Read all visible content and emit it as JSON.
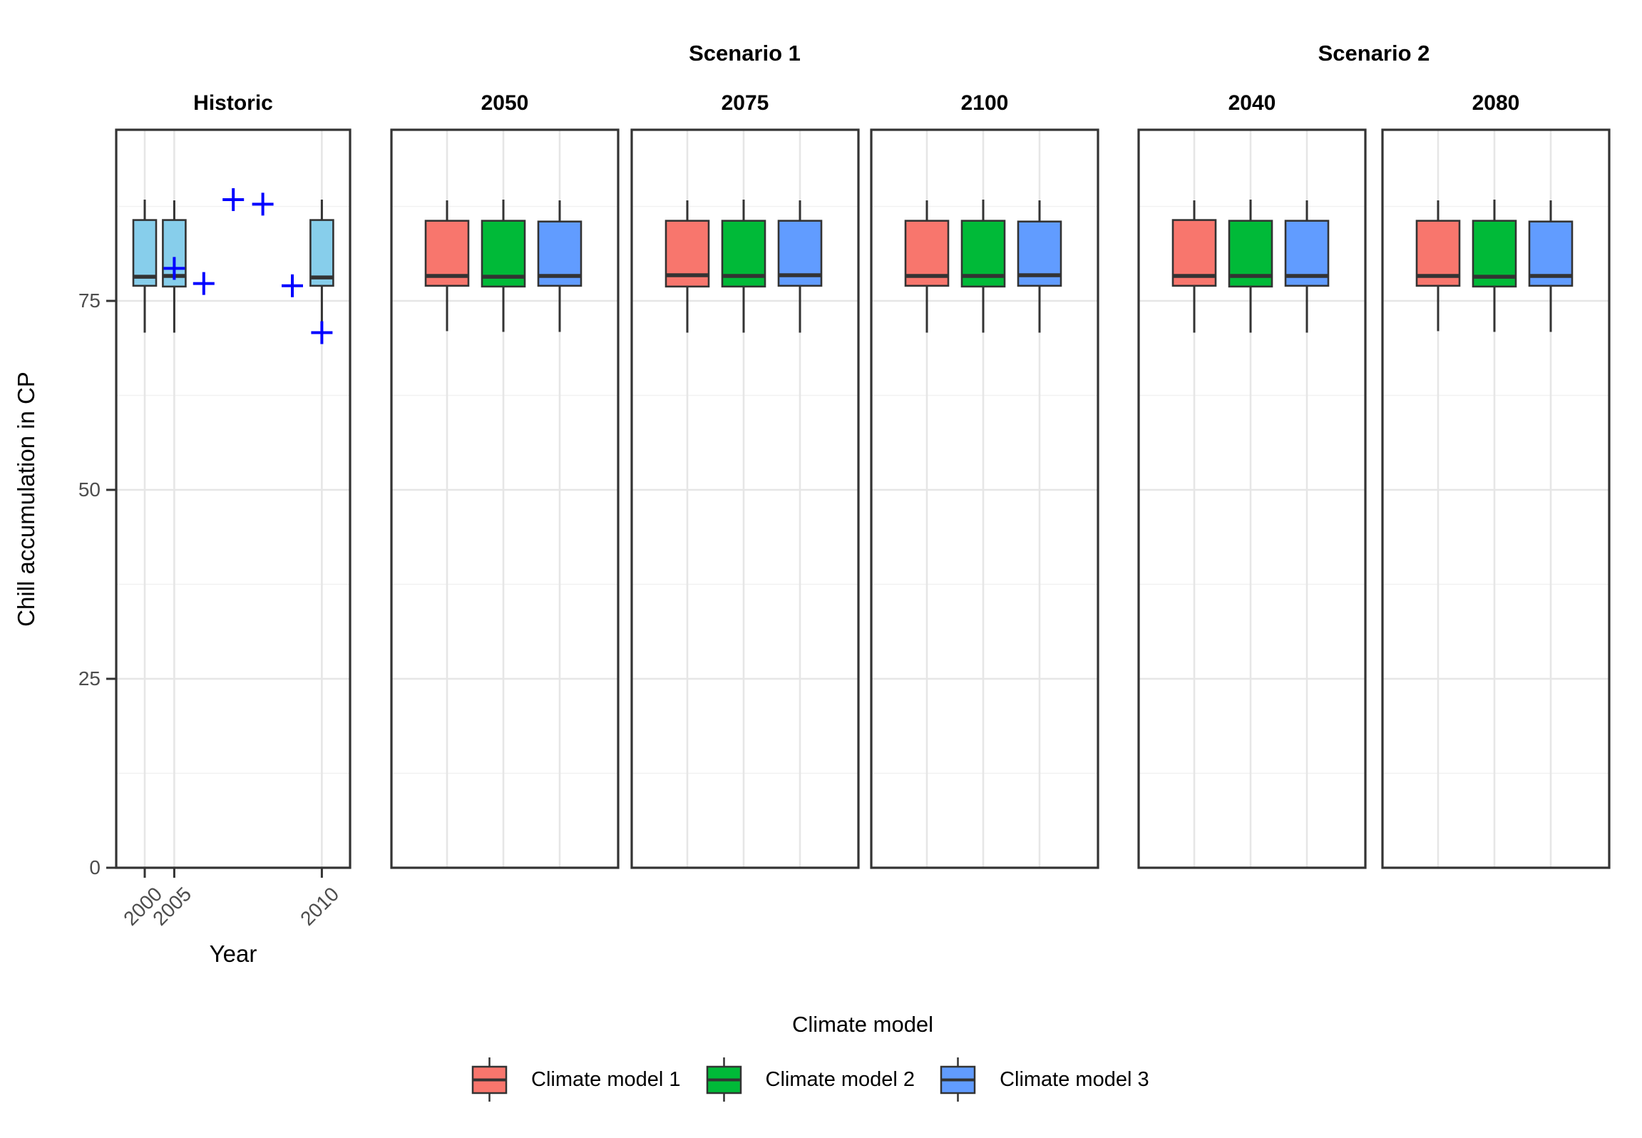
{
  "chart_data": {
    "type": "boxplot",
    "description": "Faceted boxplot figure of chill accumulation scenarios; historic simulated boxplots with observed values as blue crosses, and future scenario boxplots per climate model.",
    "facet_row_headers": [
      "Scenario 1",
      "Scenario 2"
    ],
    "ylabel": "Chill accumulation in CP",
    "xlabel": "Year",
    "ylim": [
      0,
      97.6
    ],
    "y_ticks": [
      {
        "value": 0,
        "label": "0"
      },
      {
        "value": 25,
        "label": "25"
      },
      {
        "value": 50,
        "label": "50"
      },
      {
        "value": 75,
        "label": "75"
      }
    ],
    "grid": {
      "h_major": [
        25,
        50,
        75
      ],
      "h_minor": [
        12.5,
        37.5,
        62.5,
        87.5
      ],
      "visible": true
    },
    "point_color": "#0000FF",
    "point_shape": "plus",
    "box_border_color": "#333333",
    "historic_fill": "#87CEEB",
    "panels": [
      {
        "title": "Historic",
        "group": "",
        "x_type": "year",
        "n_slots": 7,
        "x_ticks": [
          {
            "label": "2000",
            "slot": 0
          },
          {
            "label": "2005",
            "slot": 1
          },
          {
            "label": "2010",
            "slot": 6
          }
        ],
        "boxes": [
          {
            "slot": 0,
            "year": "2000",
            "color": "#87CEEB",
            "low": 70.8,
            "q1": 77.0,
            "median": 78.2,
            "q3": 85.7,
            "high": 88.4
          },
          {
            "slot": 1,
            "year": "2005",
            "color": "#87CEEB",
            "low": 70.8,
            "q1": 76.9,
            "median": 78.3,
            "q3": 85.7,
            "high": 88.3
          },
          {
            "slot": 6,
            "year": "2010",
            "color": "#87CEEB",
            "low": 69.3,
            "q1": 77.0,
            "median": 78.1,
            "q3": 85.7,
            "high": 88.4
          }
        ],
        "points": [
          {
            "slot": 1,
            "year": "2005",
            "value": 79.3
          },
          {
            "slot": 2,
            "year": "2006",
            "value": 77.3
          },
          {
            "slot": 3,
            "year": "2007",
            "value": 88.4
          },
          {
            "slot": 4,
            "year": "2008",
            "value": 87.8
          },
          {
            "slot": 5,
            "year": "2009",
            "value": 77.0
          },
          {
            "slot": 6,
            "year": "2010",
            "value": 70.8
          }
        ]
      },
      {
        "title": "2050",
        "group": "Scenario 1",
        "x_type": "model",
        "n_slots": 3,
        "x_ticks": [],
        "boxes": [
          {
            "slot": 0,
            "model": "Climate model 1",
            "color": "#F8766D",
            "low": 71.0,
            "q1": 77.0,
            "median": 78.3,
            "q3": 85.6,
            "high": 88.3
          },
          {
            "slot": 1,
            "model": "Climate model 2",
            "color": "#00BA38",
            "low": 70.9,
            "q1": 76.9,
            "median": 78.2,
            "q3": 85.6,
            "high": 88.4
          },
          {
            "slot": 2,
            "model": "Climate model 3",
            "color": "#619CFF",
            "low": 70.9,
            "q1": 77.0,
            "median": 78.3,
            "q3": 85.5,
            "high": 88.3
          }
        ],
        "points": []
      },
      {
        "title": "2075",
        "group": "Scenario 1",
        "x_type": "model",
        "n_slots": 3,
        "x_ticks": [],
        "boxes": [
          {
            "slot": 0,
            "model": "Climate model 1",
            "color": "#F8766D",
            "low": 70.8,
            "q1": 76.9,
            "median": 78.4,
            "q3": 85.6,
            "high": 88.3
          },
          {
            "slot": 1,
            "model": "Climate model 2",
            "color": "#00BA38",
            "low": 70.8,
            "q1": 76.9,
            "median": 78.3,
            "q3": 85.6,
            "high": 88.4
          },
          {
            "slot": 2,
            "model": "Climate model 3",
            "color": "#619CFF",
            "low": 70.8,
            "q1": 77.0,
            "median": 78.4,
            "q3": 85.6,
            "high": 88.3
          }
        ],
        "points": []
      },
      {
        "title": "2100",
        "group": "Scenario 1",
        "x_type": "model",
        "n_slots": 3,
        "x_ticks": [],
        "boxes": [
          {
            "slot": 0,
            "model": "Climate model 1",
            "color": "#F8766D",
            "low": 70.8,
            "q1": 77.0,
            "median": 78.3,
            "q3": 85.6,
            "high": 88.3
          },
          {
            "slot": 1,
            "model": "Climate model 2",
            "color": "#00BA38",
            "low": 70.8,
            "q1": 76.9,
            "median": 78.3,
            "q3": 85.6,
            "high": 88.4
          },
          {
            "slot": 2,
            "model": "Climate model 3",
            "color": "#619CFF",
            "low": 70.8,
            "q1": 77.0,
            "median": 78.4,
            "q3": 85.5,
            "high": 88.3
          }
        ],
        "points": []
      },
      {
        "title": "2040",
        "group": "Scenario 2",
        "x_type": "model",
        "n_slots": 3,
        "x_ticks": [],
        "boxes": [
          {
            "slot": 0,
            "model": "Climate model 1",
            "color": "#F8766D",
            "low": 70.8,
            "q1": 77.0,
            "median": 78.3,
            "q3": 85.7,
            "high": 88.3
          },
          {
            "slot": 1,
            "model": "Climate model 2",
            "color": "#00BA38",
            "low": 70.8,
            "q1": 76.9,
            "median": 78.3,
            "q3": 85.6,
            "high": 88.4
          },
          {
            "slot": 2,
            "model": "Climate model 3",
            "color": "#619CFF",
            "low": 70.8,
            "q1": 77.0,
            "median": 78.3,
            "q3": 85.6,
            "high": 88.3
          }
        ],
        "points": []
      },
      {
        "title": "2080",
        "group": "Scenario 2",
        "x_type": "model",
        "n_slots": 3,
        "x_ticks": [],
        "boxes": [
          {
            "slot": 0,
            "model": "Climate model 1",
            "color": "#F8766D",
            "low": 71.0,
            "q1": 77.0,
            "median": 78.3,
            "q3": 85.6,
            "high": 88.3
          },
          {
            "slot": 1,
            "model": "Climate model 2",
            "color": "#00BA38",
            "low": 70.9,
            "q1": 76.9,
            "median": 78.2,
            "q3": 85.6,
            "high": 88.4
          },
          {
            "slot": 2,
            "model": "Climate model 3",
            "color": "#619CFF",
            "low": 70.9,
            "q1": 77.0,
            "median": 78.3,
            "q3": 85.5,
            "high": 88.3
          }
        ],
        "points": []
      }
    ],
    "legend": {
      "title": "Climate model",
      "position": "bottom",
      "entries": [
        {
          "label": "Climate model 1",
          "color": "#F8766D"
        },
        {
          "label": "Climate model 2",
          "color": "#00BA38"
        },
        {
          "label": "Climate model 3",
          "color": "#619CFF"
        }
      ]
    }
  }
}
